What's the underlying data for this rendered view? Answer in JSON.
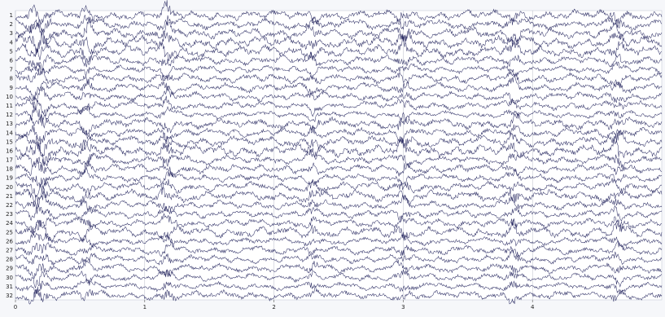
{
  "chart_data": {
    "type": "line",
    "title": "",
    "xlabel": "",
    "ylabel": "",
    "xlim": [
      0,
      5
    ],
    "x_ticks": [
      0,
      1,
      2,
      3,
      4
    ],
    "channels": [
      "1",
      "2",
      "3",
      "4",
      "5",
      "6",
      "7",
      "8",
      "9",
      "10",
      "11",
      "12",
      "13",
      "14",
      "15",
      "16",
      "17",
      "18",
      "19",
      "20",
      "21",
      "22",
      "23",
      "24",
      "25",
      "26",
      "27",
      "28",
      "29",
      "30",
      "31",
      "32"
    ],
    "trace_color": "#1e1f5a",
    "trace_opacity": 0.9,
    "background_color": "#f6f7fa",
    "plot_background_color": "#ffffff",
    "grid": "vertical lines at x ticks"
  }
}
